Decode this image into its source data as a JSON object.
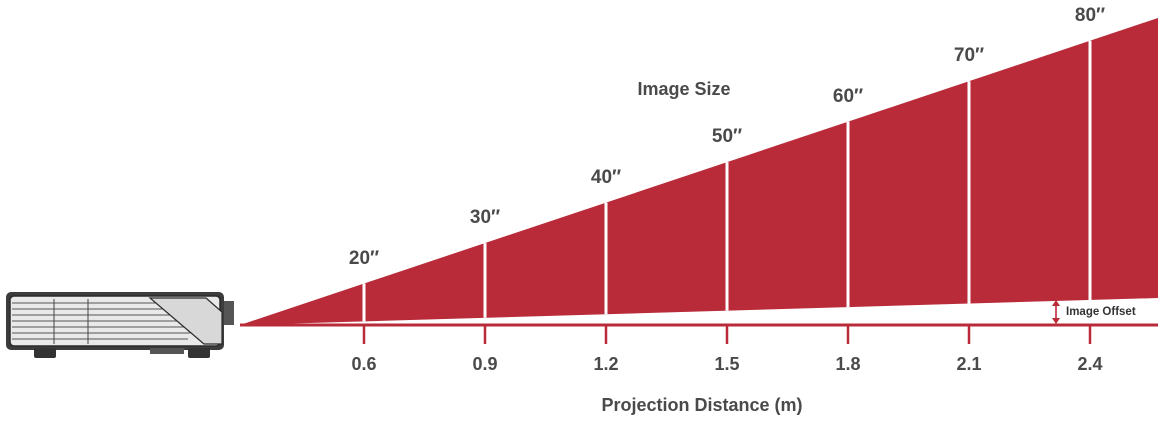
{
  "title": "Image Size",
  "x_axis_title": "Projection Distance (m)",
  "offset_label": "Image Offset",
  "colors": {
    "beam": "#b92b38",
    "text": "#4a4a4a",
    "divider": "#ffffff"
  },
  "chart_data": {
    "type": "diagram",
    "description_source": "projection throw distance vs image size",
    "distances": [
      "0.6",
      "0.9",
      "1.2",
      "1.5",
      "1.8",
      "2.1",
      "2.4"
    ],
    "image_sizes": [
      "20″",
      "30″",
      "40″",
      "50″",
      "60″",
      "70″",
      "80″"
    ],
    "pairs": [
      {
        "distance_m": 0.6,
        "image_size_in": 20
      },
      {
        "distance_m": 0.9,
        "image_size_in": 30
      },
      {
        "distance_m": 1.2,
        "image_size_in": 40
      },
      {
        "distance_m": 1.5,
        "image_size_in": 50
      },
      {
        "distance_m": 1.8,
        "image_size_in": 60
      },
      {
        "distance_m": 2.1,
        "image_size_in": 70
      },
      {
        "distance_m": 2.4,
        "image_size_in": 80
      }
    ]
  }
}
